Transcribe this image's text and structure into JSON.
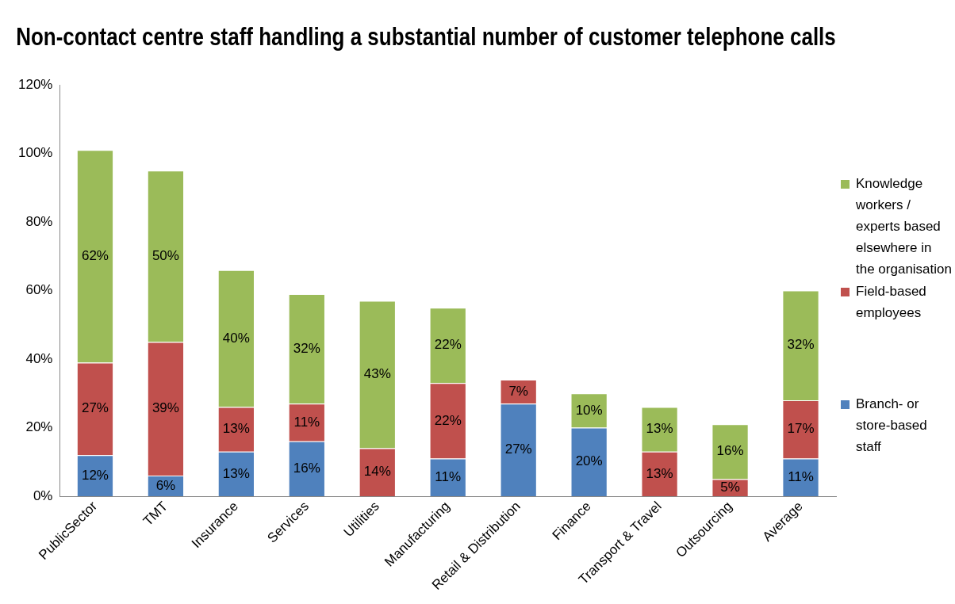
{
  "chart_data": {
    "type": "bar",
    "title": "Non-contact centre staff handling a substantial number of customer telephone calls",
    "categories": [
      "PublicSector",
      "TMT",
      "Insurance",
      "Services",
      "Utilities",
      "Manufacturing",
      "Retail & Distribution",
      "Finance",
      "Transport & Travel",
      "Outsourcing",
      "Average"
    ],
    "stacked": true,
    "series": [
      {
        "name": "Branch- or store-based staff",
        "color": "#4f81bd",
        "values": [
          12,
          6,
          13,
          16,
          null,
          11,
          27,
          20,
          null,
          null,
          11
        ],
        "value_labels": [
          "12%",
          "6%",
          "13%",
          "16%",
          null,
          "11%",
          "27%",
          "20%",
          null,
          null,
          "11%"
        ]
      },
      {
        "name": "Field-based employees",
        "color": "#c0504d",
        "values": [
          27,
          39,
          13,
          11,
          14,
          22,
          7,
          null,
          13,
          5,
          17
        ],
        "value_labels": [
          "27%",
          "39%",
          "13%",
          "11%",
          "14%",
          "22%",
          "7%",
          null,
          "13%",
          "5%",
          "17%"
        ]
      },
      {
        "name": "Knowledge workers / experts based elsewhere in the organisation",
        "color": "#9bbb59",
        "values": [
          62,
          50,
          40,
          32,
          43,
          22,
          null,
          10,
          13,
          16,
          32
        ],
        "value_labels": [
          "62%",
          "50%",
          "40%",
          "32%",
          "43%",
          "22%",
          null,
          "10%",
          "13%",
          "16%",
          "32%"
        ]
      }
    ],
    "ylim": [
      0,
      120
    ],
    "yticks": [
      {
        "value": 0,
        "label": "0%"
      },
      {
        "value": 20,
        "label": "20%"
      },
      {
        "value": 40,
        "label": "40%"
      },
      {
        "value": 60,
        "label": "60%"
      },
      {
        "value": 80,
        "label": "80%"
      },
      {
        "value": 100,
        "label": "100%"
      },
      {
        "value": 120,
        "label": "120%"
      }
    ],
    "grid": false,
    "legend": "right"
  }
}
